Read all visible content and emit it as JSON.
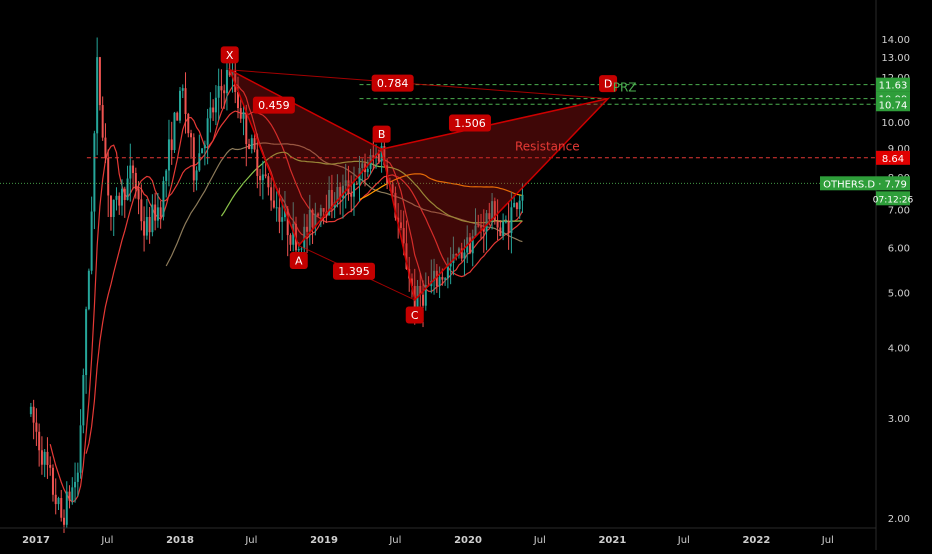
{
  "chart_data": {
    "type": "candlestick",
    "symbol": "OTHERS.D",
    "last_value_label": "OTHERS.D · 7.79",
    "last_value": 7.79,
    "countdown": "07:12:26",
    "price_axis": {
      "range": [
        1.9,
        15.0
      ],
      "ticks": [
        "2.00",
        "3.00",
        "4.00",
        "5.00",
        "6.00",
        "7.00",
        "8.00",
        "9.00",
        "10.00",
        "11.00",
        "12.00",
        "13.00",
        "14.00"
      ],
      "tick_values": [
        2,
        3,
        4,
        5,
        6,
        7,
        8,
        9,
        10,
        11,
        12,
        13,
        14
      ]
    },
    "time_axis": {
      "range": [
        "2016-12-15",
        "2022-10-01"
      ],
      "ticks": [
        {
          "label": "2017",
          "date": "2017-01-01"
        },
        {
          "label": "Jul",
          "date": "2017-07-01"
        },
        {
          "label": "2018",
          "date": "2018-01-01"
        },
        {
          "label": "Jul",
          "date": "2018-07-01"
        },
        {
          "label": "2019",
          "date": "2019-01-01"
        },
        {
          "label": "Jul",
          "date": "2019-07-01"
        },
        {
          "label": "2020",
          "date": "2020-01-01"
        },
        {
          "label": "Jul",
          "date": "2020-07-01"
        },
        {
          "label": "2021",
          "date": "2021-01-01"
        },
        {
          "label": "Jul",
          "date": "2021-07-01"
        },
        {
          "label": "2022",
          "date": "2022-01-01"
        },
        {
          "label": "Jul",
          "date": "2022-07-01"
        }
      ]
    },
    "harmonic_pattern": {
      "points": [
        {
          "label": "X",
          "date": "2018-05-07",
          "value": 12.35
        },
        {
          "label": "A",
          "date": "2018-10-29",
          "value": 6.05
        },
        {
          "label": "B",
          "date": "2019-05-27",
          "value": 8.95
        },
        {
          "label": "C",
          "date": "2019-08-19",
          "value": 4.85
        },
        {
          "label": "D",
          "date": "2020-12-21",
          "value": 10.99
        }
      ],
      "ratios": [
        {
          "label": "0.459",
          "date": "2018-08-27",
          "value": 10.7
        },
        {
          "label": "1.395",
          "date": "2019-03-18",
          "value": 5.45
        },
        {
          "label": "1.506",
          "date": "2020-01-06",
          "value": 9.95
        },
        {
          "label": "0.784",
          "date": "2019-06-24",
          "value": 11.7
        }
      ]
    },
    "levels": [
      {
        "value": 11.63,
        "label": "11.63",
        "color": "#4caf50",
        "start": "2019-04-01"
      },
      {
        "value": 10.99,
        "label": "10.99",
        "color": "#4caf50",
        "start": "2019-04-01"
      },
      {
        "value": 10.74,
        "label": "10.74",
        "color": "#4caf50",
        "start": "2019-06-01"
      },
      {
        "value": 8.64,
        "label": "8.64",
        "color": "#e53935",
        "start": "2017-05-10"
      }
    ],
    "annotations": [
      {
        "text": "PRZ",
        "date": "2021-02-01",
        "value": 11.3,
        "color": "#4caf50"
      },
      {
        "text": "Resistance",
        "date": "2020-07-20",
        "value": 8.9,
        "color": "#e53935"
      }
    ],
    "candles": [],
    "colors": {
      "background": "#000000",
      "up": "#26a69a",
      "down": "#ef5350",
      "pattern": "#cc0000",
      "level_green": "#4caf50",
      "level_red": "#e53935",
      "ma_red": "#e53935",
      "ma_green": "#8bc34a",
      "ma_orange": "#ff9800",
      "ma_tan": "#8d7b5a",
      "axis_text": "#cfcfcf"
    }
  }
}
